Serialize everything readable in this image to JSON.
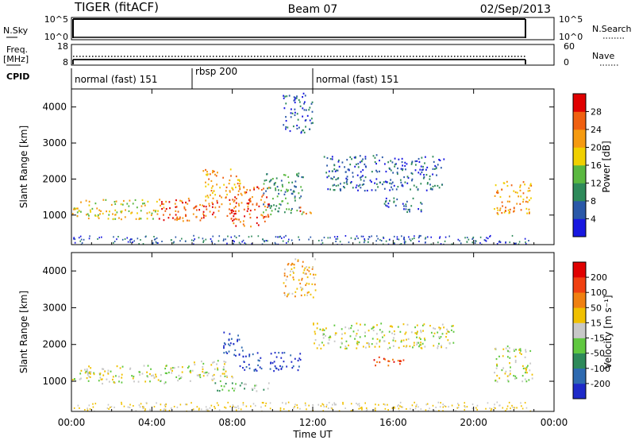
{
  "header": {
    "station": "TIGER (fitACF)",
    "beam": "Beam 07",
    "date": "02/Sep/2013"
  },
  "left_labels": {
    "nsky": "N.Sky",
    "freq_line1": "Freq.",
    "freq_line2": "[MHz]",
    "cpid": "CPID"
  },
  "right_labels": {
    "nsearch": "N.Search",
    "nave": "Nave"
  },
  "nsky_axis": {
    "top": "10^5",
    "bottom": "10^0"
  },
  "freq_axis": {
    "top": "18",
    "bottom": "8"
  },
  "nave_axis": {
    "top": "60",
    "bottom": "0"
  },
  "cpid_segments": [
    {
      "label": "normal (fast) 151",
      "start": 0,
      "end": 6
    },
    {
      "label": "rbsp 200",
      "start": 6,
      "end": 12
    },
    {
      "label": "normal (fast) 151",
      "start": 12,
      "end": 22.85
    }
  ],
  "chart_data": [
    {
      "type": "heatmap",
      "quantity": "power",
      "x_range_hours": [
        0,
        24
      ],
      "y_range_km": [
        180,
        4500
      ],
      "ylabel": "Slant Range [km]",
      "y_ticks": [
        1000,
        2000,
        3000,
        4000
      ],
      "colorbar": {
        "label": "Power [dB]",
        "ticks": [
          "4",
          "8",
          "12",
          "16",
          "20",
          "24",
          "28"
        ],
        "colors": [
          "#1818e0",
          "#2a58a8",
          "#2e8a5a",
          "#5ab840",
          "#f0d000",
          "#f59a10",
          "#f06010",
          "#e00000"
        ]
      },
      "regions": [
        {
          "x0": 0.0,
          "x1": 4.3,
          "y0": 900,
          "y1": 1450,
          "level": 4
        },
        {
          "x0": 4.3,
          "x1": 8.2,
          "y0": 850,
          "y1": 1500,
          "level": 6
        },
        {
          "x0": 7.8,
          "x1": 9.8,
          "y0": 700,
          "y1": 1800,
          "level": 6
        },
        {
          "x0": 6.5,
          "x1": 8.5,
          "y0": 1500,
          "y1": 2300,
          "level": 5
        },
        {
          "x0": 9.5,
          "x1": 11.5,
          "y0": 1000,
          "y1": 2200,
          "level": 2
        },
        {
          "x0": 11.3,
          "x1": 11.9,
          "y0": 1050,
          "y1": 1300,
          "level": 6
        },
        {
          "x0": 10.5,
          "x1": 12.0,
          "y0": 3300,
          "y1": 4400,
          "level": 1
        },
        {
          "x0": 12.5,
          "x1": 18.5,
          "y0": 1700,
          "y1": 2700,
          "level": 1
        },
        {
          "x0": 15.5,
          "x1": 17.5,
          "y0": 1100,
          "y1": 1500,
          "level": 1
        },
        {
          "x0": 21.0,
          "x1": 22.9,
          "y0": 1000,
          "y1": 1950,
          "level": 5
        }
      ]
    },
    {
      "type": "heatmap",
      "quantity": "velocity",
      "x_range_hours": [
        0,
        24
      ],
      "y_range_km": [
        180,
        4500
      ],
      "ylabel": "Slant Range [km]",
      "y_ticks": [
        1000,
        2000,
        3000,
        4000
      ],
      "xlabel": "Time UT",
      "x_ticks": [
        "00:00",
        "04:00",
        "08:00",
        "12:00",
        "16:00",
        "20:00",
        "00:00"
      ],
      "colorbar": {
        "label": "Velocity [m s⁻¹]",
        "ticks": [
          "200",
          "100",
          "50",
          "15",
          "-15",
          "-50",
          "-100",
          "-200"
        ],
        "colors": [
          "#1e2ac8",
          "#2e6ab0",
          "#2e8a5a",
          "#60c840",
          "#c8c8c8",
          "#f0c000",
          "#f08010",
          "#f04010",
          "#e00000"
        ]
      },
      "regions": [
        {
          "x0": 0.0,
          "x1": 6.0,
          "y0": 950,
          "y1": 1450,
          "level": 4
        },
        {
          "x0": 6.0,
          "x1": 8.0,
          "y0": 1000,
          "y1": 1600,
          "level": 4
        },
        {
          "x0": 7.5,
          "x1": 8.5,
          "y0": 1700,
          "y1": 2400,
          "level": 0
        },
        {
          "x0": 8.3,
          "x1": 9.6,
          "y0": 1300,
          "y1": 1800,
          "level": 0
        },
        {
          "x0": 7.0,
          "x1": 9.8,
          "y0": 750,
          "y1": 1000,
          "level": 3
        },
        {
          "x0": 9.7,
          "x1": 11.4,
          "y0": 1300,
          "y1": 1800,
          "level": 0
        },
        {
          "x0": 10.5,
          "x1": 12.2,
          "y0": 3300,
          "y1": 4400,
          "level": 5
        },
        {
          "x0": 12.0,
          "x1": 19.0,
          "y0": 1900,
          "y1": 2600,
          "level": 4
        },
        {
          "x0": 15.0,
          "x1": 16.5,
          "y0": 1400,
          "y1": 1700,
          "level": 7
        },
        {
          "x0": 21.0,
          "x1": 22.9,
          "y0": 1000,
          "y1": 2000,
          "level": 4
        }
      ]
    }
  ]
}
